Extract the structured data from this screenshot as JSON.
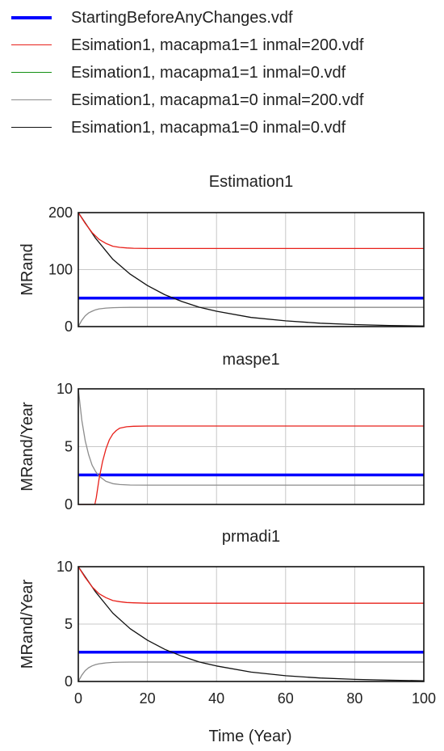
{
  "legend": {
    "placement": "top",
    "items": [
      {
        "label": "StartingBeforeAnyChanges.vdf",
        "color": "#0000ff"
      },
      {
        "label": "Esimation1, macapma1=1 inmal=200.vdf",
        "color": "#e8201a"
      },
      {
        "label": "Esimation1, macapma1=1 inmal=0.vdf",
        "color": "#138f13"
      },
      {
        "label": "Esimation1, macapma1=0 inmal=200.vdf",
        "color": "#8c8c8c"
      },
      {
        "label": "Esimation1, macapma1=0 inmal=0.vdf",
        "color": "#111111"
      }
    ]
  },
  "x_axis": {
    "label": "Time (Year)",
    "range": [
      0,
      100
    ],
    "ticks": [
      "0",
      "20",
      "40",
      "60",
      "80",
      "100"
    ]
  },
  "chart_data": [
    {
      "type": "line",
      "title": "Estimation1",
      "ylabel": "MRand",
      "ylim": [
        0,
        200
      ],
      "yticks": [
        "0",
        "100",
        "200"
      ],
      "xlim": [
        0,
        100
      ],
      "grid": true,
      "series": [
        {
          "name": "StartingBeforeAnyChanges.vdf",
          "color": "#0000ff",
          "width": 3.5,
          "x": [
            0,
            100
          ],
          "y": [
            50,
            50
          ]
        },
        {
          "name": "Esimation1, macapma1=0 inmal=200.vdf",
          "color": "#8c8c8c",
          "width": 1.3,
          "x": [
            0,
            1,
            2,
            3,
            4,
            5,
            6,
            8,
            10,
            12,
            15,
            20,
            30,
            40,
            60,
            80,
            100
          ],
          "y": [
            0,
            11,
            19,
            24,
            27,
            29.5,
            31,
            32.5,
            33.2,
            33.5,
            33.7,
            33.8,
            33.8,
            33.8,
            33.8,
            33.8,
            33.8
          ]
        },
        {
          "name": "Esimation1, macapma1=0 inmal=0.vdf",
          "color": "#111111",
          "width": 1.3,
          "x": [
            0,
            5,
            10,
            15,
            20,
            25,
            30,
            35,
            40,
            50,
            60,
            70,
            80,
            90,
            100
          ],
          "y": [
            200,
            155,
            118,
            92,
            72,
            56,
            44,
            34,
            27,
            16,
            10,
            6,
            3.5,
            2,
            1
          ]
        },
        {
          "name": "Esimation1, macapma1=1 inmal=200.vdf",
          "color": "#e8201a",
          "width": 1.3,
          "x": [
            0,
            2,
            4,
            6,
            8,
            10,
            12,
            14,
            16,
            20,
            30,
            40,
            60,
            80,
            100
          ],
          "y": [
            200,
            181,
            165,
            153,
            146,
            141,
            139,
            138,
            137.5,
            137,
            137,
            137,
            137,
            137,
            137
          ]
        }
      ]
    },
    {
      "type": "line",
      "title": "maspe1",
      "ylabel": "MRand/Year",
      "ylim": [
        0,
        10
      ],
      "yticks": [
        "0",
        "5",
        "10"
      ],
      "xlim": [
        0,
        100
      ],
      "grid": true,
      "series": [
        {
          "name": "StartingBeforeAnyChanges.vdf",
          "color": "#0000ff",
          "width": 3.5,
          "x": [
            0,
            100
          ],
          "y": [
            2.55,
            2.55
          ]
        },
        {
          "name": "Esimation1, macapma1=0 inmal=200.vdf",
          "color": "#8c8c8c",
          "width": 1.3,
          "x": [
            0,
            1,
            2,
            3,
            4,
            5,
            6,
            8,
            10,
            12,
            15,
            20,
            30,
            50,
            100
          ],
          "y": [
            10,
            7.3,
            5.5,
            4.3,
            3.4,
            2.85,
            2.45,
            2.0,
            1.8,
            1.72,
            1.68,
            1.67,
            1.67,
            1.67,
            1.67
          ]
        },
        {
          "name": "Esimation1, macapma1=1 inmal=200.vdf",
          "color": "#e8201a",
          "width": 1.3,
          "x": [
            0,
            4.8,
            5.2,
            6,
            7,
            8,
            9,
            10,
            11,
            12,
            14,
            16,
            20,
            30,
            50,
            100
          ],
          "y": [
            0,
            0,
            0.6,
            2.2,
            3.7,
            4.8,
            5.6,
            6.1,
            6.4,
            6.6,
            6.72,
            6.76,
            6.78,
            6.78,
            6.78,
            6.78
          ]
        }
      ]
    },
    {
      "type": "line",
      "title": "prmadi1",
      "ylabel": "MRand/Year",
      "ylim": [
        0,
        10
      ],
      "yticks": [
        "0",
        "5",
        "10"
      ],
      "xlim": [
        0,
        100
      ],
      "grid": true,
      "series": [
        {
          "name": "StartingBeforeAnyChanges.vdf",
          "color": "#0000ff",
          "width": 3.5,
          "x": [
            0,
            100
          ],
          "y": [
            2.55,
            2.55
          ]
        },
        {
          "name": "Esimation1, macapma1=0 inmal=200.vdf",
          "color": "#8c8c8c",
          "width": 1.3,
          "x": [
            0,
            1,
            2,
            3,
            4,
            5,
            6,
            8,
            10,
            12,
            15,
            20,
            30,
            50,
            100
          ],
          "y": [
            0,
            0.55,
            0.95,
            1.2,
            1.36,
            1.47,
            1.54,
            1.62,
            1.66,
            1.68,
            1.69,
            1.69,
            1.69,
            1.69,
            1.69
          ]
        },
        {
          "name": "Esimation1, macapma1=0 inmal=0.vdf",
          "color": "#111111",
          "width": 1.3,
          "x": [
            0,
            5,
            10,
            15,
            20,
            25,
            30,
            35,
            40,
            50,
            60,
            70,
            80,
            90,
            100
          ],
          "y": [
            10,
            7.8,
            5.95,
            4.6,
            3.6,
            2.8,
            2.2,
            1.7,
            1.35,
            0.82,
            0.5,
            0.3,
            0.18,
            0.11,
            0.06
          ]
        },
        {
          "name": "Esimation1, macapma1=1 inmal=200.vdf",
          "color": "#e8201a",
          "width": 1.3,
          "x": [
            0,
            2,
            4,
            6,
            8,
            10,
            12,
            14,
            16,
            20,
            30,
            50,
            100
          ],
          "y": [
            10,
            9.05,
            8.25,
            7.65,
            7.3,
            7.05,
            6.95,
            6.88,
            6.85,
            6.82,
            6.82,
            6.82,
            6.82
          ]
        }
      ]
    }
  ]
}
